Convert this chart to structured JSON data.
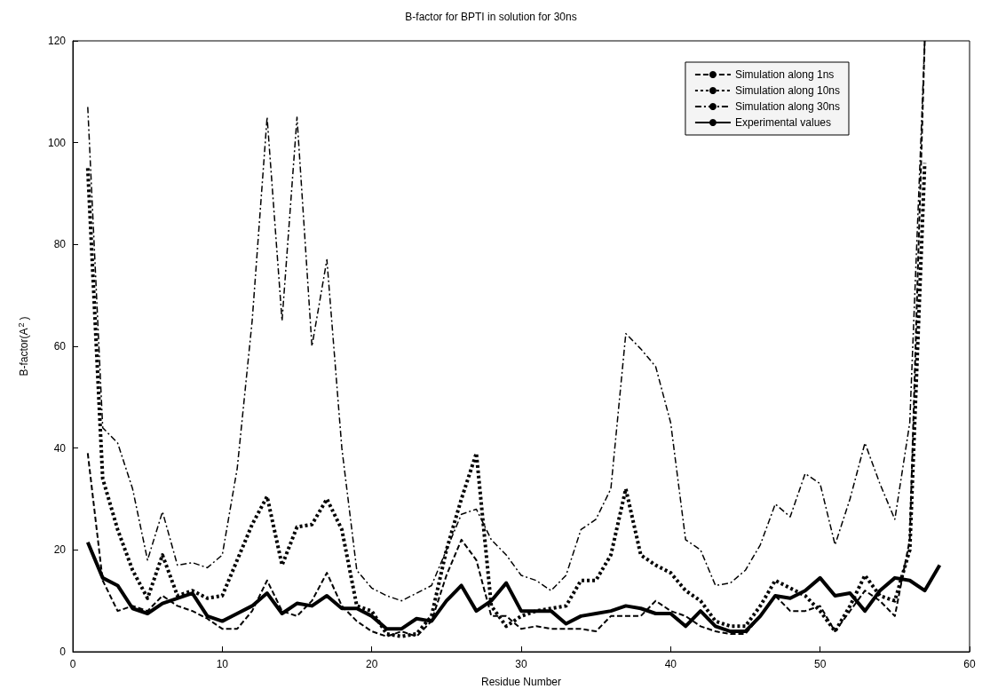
{
  "chart_data": {
    "type": "line",
    "title": "B-factor for BPTI in solution for 30ns",
    "xlabel": "Residue Number",
    "ylabel": "B-factor(A$^{2}$)",
    "x": [
      1,
      2,
      3,
      4,
      5,
      6,
      7,
      8,
      9,
      10,
      11,
      12,
      13,
      14,
      15,
      16,
      17,
      18,
      19,
      20,
      21,
      22,
      23,
      24,
      25,
      26,
      27,
      28,
      29,
      30,
      31,
      32,
      33,
      34,
      35,
      36,
      37,
      38,
      39,
      40,
      41,
      42,
      43,
      44,
      45,
      46,
      47,
      48,
      49,
      50,
      51,
      52,
      53,
      54,
      55,
      56,
      57,
      58
    ],
    "xlim": [
      0,
      60
    ],
    "xticks": [
      0,
      10,
      20,
      30,
      40,
      50,
      60
    ],
    "ylim": [
      0,
      120
    ],
    "yticks": [
      0,
      20,
      40,
      60,
      80,
      100,
      120
    ],
    "grid": false,
    "legend": "top right",
    "marker": "none",
    "series": [
      {
        "name": "Simulation along 1ns",
        "color": "#000000",
        "line_style": "dashed",
        "values": [
          39,
          14,
          8,
          9,
          8,
          11,
          9,
          8,
          6.5,
          4.5,
          4.5,
          8,
          14,
          8,
          7,
          10,
          15.5,
          9,
          6,
          4,
          3,
          4,
          3,
          6,
          15,
          22,
          18,
          7,
          7,
          4.5,
          5,
          4.5,
          4.5,
          4.5,
          4,
          7,
          7,
          7,
          10,
          8,
          7,
          5,
          4,
          3.5,
          3.5,
          7,
          11,
          8,
          8,
          9,
          4,
          8,
          12,
          10,
          7,
          22,
          120,
          null
        ]
      },
      {
        "name": "Simulation along 10ns",
        "color": "#000000",
        "line_style": "dotted",
        "values": [
          95,
          34,
          24,
          16,
          10.5,
          19,
          11,
          12,
          10.5,
          11,
          18,
          25,
          30.5,
          17,
          24.5,
          25,
          30,
          24,
          9,
          8,
          3.5,
          3,
          3.5,
          7,
          20,
          30,
          39,
          9,
          5,
          7,
          8,
          8.5,
          9,
          14,
          14,
          19,
          32,
          19,
          17,
          15.5,
          12,
          10,
          6,
          5,
          5,
          9,
          14,
          12.5,
          11,
          8,
          4,
          9,
          15,
          11,
          10,
          20,
          96,
          null
        ]
      },
      {
        "name": "Simulation along 30ns",
        "color": "#000000",
        "line_style": "dashdot",
        "values": [
          107,
          44,
          41,
          32,
          18,
          27.5,
          17,
          17.5,
          16.5,
          19,
          36,
          65,
          105,
          65,
          105,
          60,
          77,
          40,
          16,
          12.5,
          11,
          10,
          11.5,
          13,
          20,
          27,
          28,
          22,
          19,
          15,
          14,
          12,
          15,
          24,
          26,
          32,
          62.5,
          59.5,
          56,
          45,
          22,
          20,
          13,
          13.5,
          16,
          21,
          29,
          26.5,
          35,
          33,
          21,
          30,
          41,
          33,
          26,
          45,
          120,
          null
        ]
      },
      {
        "name": "Experimental values",
        "color": "#000000",
        "line_style": "solid",
        "values": [
          21.5,
          14.5,
          13,
          8.5,
          7.5,
          9.5,
          10.5,
          11.5,
          7,
          6,
          7.5,
          9,
          11.5,
          7.5,
          9.5,
          9,
          11,
          8.5,
          8.5,
          7,
          4.5,
          4.5,
          6.5,
          6,
          10,
          13,
          8,
          10,
          13.5,
          8,
          8,
          8,
          5.5,
          7,
          7.5,
          8,
          9,
          8.5,
          7.5,
          7.5,
          5,
          8,
          5,
          4,
          4,
          7,
          11,
          10.5,
          12,
          14.5,
          11,
          11.5,
          8,
          12,
          14.5,
          14,
          12,
          17
        ]
      }
    ]
  }
}
